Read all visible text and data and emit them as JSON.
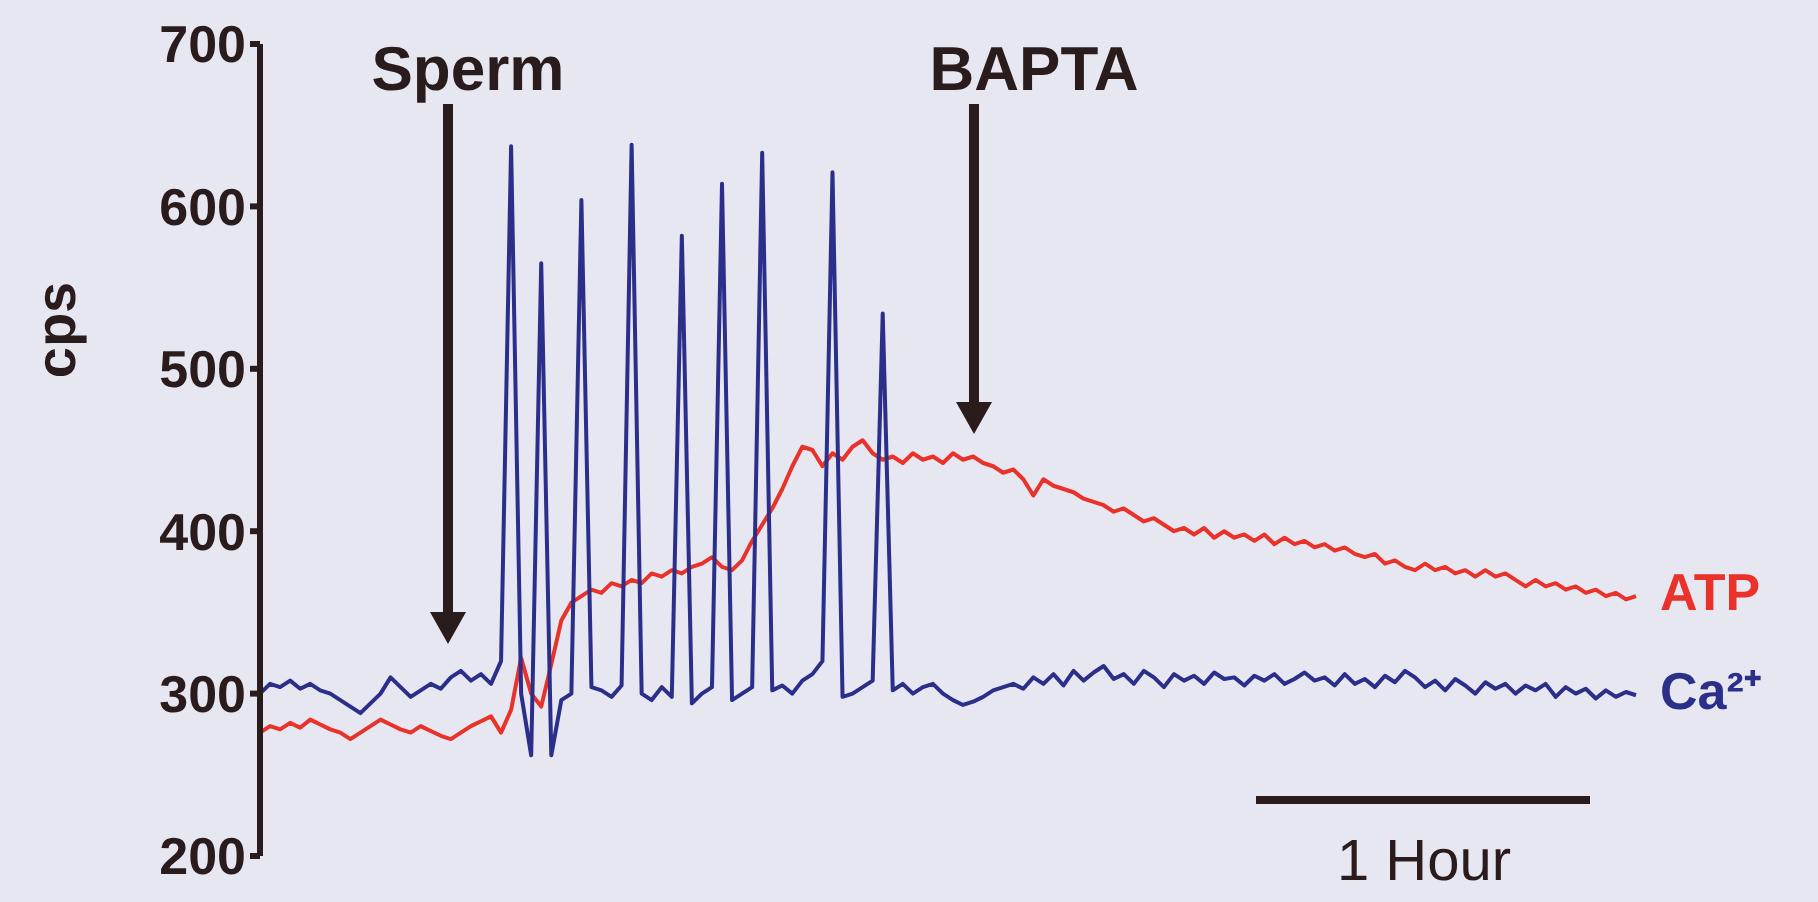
{
  "chart_data": {
    "type": "line",
    "ylabel": "cps",
    "ylim": [
      200,
      700
    ],
    "yticks": [
      200,
      300,
      400,
      500,
      600,
      700
    ],
    "tick_labels": "y",
    "marker": "none",
    "line_style": "solid",
    "legend": false,
    "annotations": [
      "Sperm",
      "BAPTA",
      "1 Hour"
    ],
    "categories": [
      null,
      null,
      null,
      null,
      null,
      null,
      null,
      null,
      null,
      null,
      null,
      null,
      null,
      null,
      null,
      null,
      null,
      null,
      null,
      null,
      null,
      null,
      null,
      null,
      null,
      null,
      null,
      null,
      null,
      null,
      null,
      null,
      null,
      null,
      null,
      null,
      null,
      null,
      null,
      null,
      null,
      null,
      null,
      null,
      null,
      null,
      null,
      null,
      null,
      null,
      null,
      null,
      null,
      null,
      null,
      null,
      null,
      null,
      null,
      null,
      null,
      null,
      null,
      null,
      null,
      null,
      null,
      null,
      null,
      null,
      null,
      null,
      null,
      null,
      null,
      null,
      null,
      null,
      null,
      null,
      null,
      null,
      null,
      null,
      null,
      null,
      null,
      null,
      null,
      null,
      null,
      null,
      null,
      null,
      null,
      null,
      null,
      null,
      null,
      null,
      null,
      null,
      null,
      null,
      null,
      null,
      null,
      null,
      null,
      null,
      null,
      null,
      null,
      null,
      null,
      null,
      null,
      null,
      null,
      null,
      null,
      null,
      null,
      null,
      null,
      null,
      null,
      null,
      null,
      null,
      null,
      null,
      null,
      null,
      null,
      null,
      null,
      null
    ],
    "series": [
      {
        "name": "ATP",
        "color": "#e8322a",
        "values": [
          276,
          280,
          278,
          282,
          279,
          284,
          281,
          278,
          276,
          272,
          276,
          280,
          284,
          281,
          278,
          276,
          280,
          277,
          274,
          272,
          276,
          280,
          283,
          286,
          276,
          290,
          322,
          300,
          292,
          318,
          345,
          356,
          360,
          364,
          362,
          368,
          366,
          370,
          368,
          374,
          372,
          376,
          374,
          378,
          380,
          384,
          378,
          376,
          382,
          394,
          404,
          414,
          426,
          440,
          452,
          450,
          440,
          448,
          444,
          452,
          456,
          448,
          444,
          446,
          442,
          448,
          444,
          446,
          442,
          448,
          444,
          446,
          442,
          440,
          436,
          438,
          432,
          422,
          432,
          428,
          426,
          424,
          420,
          418,
          416,
          412,
          414,
          410,
          406,
          408,
          404,
          400,
          402,
          398,
          402,
          396,
          400,
          396,
          398,
          394,
          398,
          392,
          396,
          392,
          394,
          390,
          392,
          388,
          390,
          386,
          384,
          386,
          380,
          382,
          378,
          376,
          380,
          376,
          378,
          374,
          376,
          372,
          376,
          372,
          374,
          370,
          366,
          370,
          366,
          368,
          364,
          366,
          362,
          364,
          360,
          362,
          358,
          360
        ]
      },
      {
        "name": "Ca²⁺",
        "color": "#2b2f8a",
        "values": [
          300,
          306,
          304,
          308,
          303,
          306,
          302,
          300,
          296,
          292,
          288,
          294,
          300,
          310,
          304,
          298,
          302,
          306,
          303,
          310,
          314,
          308,
          312,
          306,
          320,
          637,
          300,
          262,
          565,
          262,
          296,
          300,
          604,
          304,
          302,
          298,
          305,
          638,
          300,
          296,
          304,
          298,
          582,
          294,
          300,
          304,
          614,
          296,
          300,
          304,
          633,
          302,
          305,
          300,
          308,
          312,
          320,
          621,
          298,
          300,
          304,
          308,
          534,
          302,
          306,
          300,
          304,
          306,
          300,
          296,
          293,
          295,
          298,
          302,
          304,
          306,
          303,
          310,
          306,
          312,
          305,
          314,
          308,
          313,
          317,
          309,
          312,
          306,
          314,
          310,
          304,
          312,
          308,
          311,
          306,
          313,
          309,
          310,
          305,
          311,
          308,
          312,
          306,
          309,
          313,
          308,
          310,
          305,
          312,
          306,
          309,
          304,
          311,
          307,
          314,
          310,
          304,
          308,
          302,
          309,
          305,
          300,
          307,
          303,
          306,
          300,
          305,
          302,
          306,
          298,
          304,
          300,
          303,
          297,
          302,
          298,
          301,
          299
        ]
      }
    ]
  }
}
